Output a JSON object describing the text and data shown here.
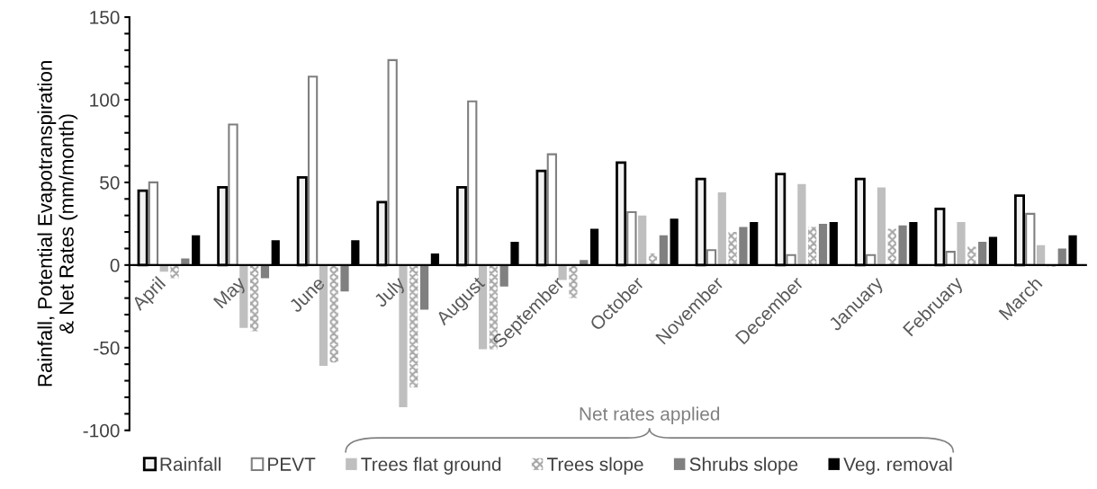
{
  "chart_data": {
    "type": "bar",
    "ylabel": "Rainfall, Potential Evapotranspiration\n& Net Rates (mm/month)",
    "categories": [
      "April",
      "May",
      "June",
      "July",
      "August",
      "September",
      "October",
      "November",
      "December",
      "January",
      "February",
      "March"
    ],
    "series": [
      {
        "name": "Rainfall",
        "color": "#f2f2f2",
        "values": [
          45,
          47,
          53,
          38,
          47,
          57,
          62,
          52,
          55,
          52,
          34,
          42
        ]
      },
      {
        "name": "PEVT",
        "color": "#ffffff",
        "values": [
          50,
          85,
          114,
          124,
          99,
          67,
          32,
          9,
          6,
          6,
          8,
          31
        ]
      },
      {
        "name": "Trees flat ground",
        "color": "#bfbfbf",
        "values": [
          -4,
          -38,
          -61,
          -86,
          -51,
          -9,
          30,
          44,
          49,
          47,
          26,
          12
        ]
      },
      {
        "name": "Trees slope",
        "color": "#a6a6a6",
        "values": [
          -8,
          -40,
          -59,
          -74,
          -51,
          -20,
          7,
          20,
          23,
          22,
          11,
          -1
        ]
      },
      {
        "name": "Shrubs slope",
        "color": "#808080",
        "values": [
          4,
          -8,
          -16,
          -27,
          -13,
          3,
          18,
          23,
          25,
          24,
          14,
          10
        ]
      },
      {
        "name": "Veg. removal",
        "color": "#000000",
        "values": [
          18,
          15,
          15,
          7,
          14,
          22,
          28,
          26,
          26,
          26,
          17,
          18
        ]
      }
    ],
    "ylim": [
      -100,
      150
    ],
    "yticks": [
      -100,
      {
        "value": -90,
        "label": null
      },
      {
        "value": -80,
        "label": null
      },
      {
        "value": -70,
        "label": null
      },
      {
        "value": -60,
        "label": null
      },
      -50,
      {
        "value": -40,
        "label": null
      },
      {
        "value": -30,
        "label": null
      },
      {
        "value": -20,
        "label": null
      },
      {
        "value": -10,
        "label": null
      },
      0,
      {
        "value": 10,
        "label": null
      },
      {
        "value": 20,
        "label": null
      },
      {
        "value": 30,
        "label": null
      },
      {
        "value": 40,
        "label": null
      },
      50,
      {
        "value": 60,
        "label": null
      },
      {
        "value": 70,
        "label": null
      },
      {
        "value": 80,
        "label": null
      },
      {
        "value": 90,
        "label": null
      },
      100,
      {
        "value": 110,
        "label": null
      },
      {
        "value": 120,
        "label": null
      },
      {
        "value": 130,
        "label": null
      },
      {
        "value": 140,
        "label": null
      },
      150
    ],
    "annotations": [
      "Net rates applied"
    ],
    "legend": "bottom",
    "grid": false
  }
}
